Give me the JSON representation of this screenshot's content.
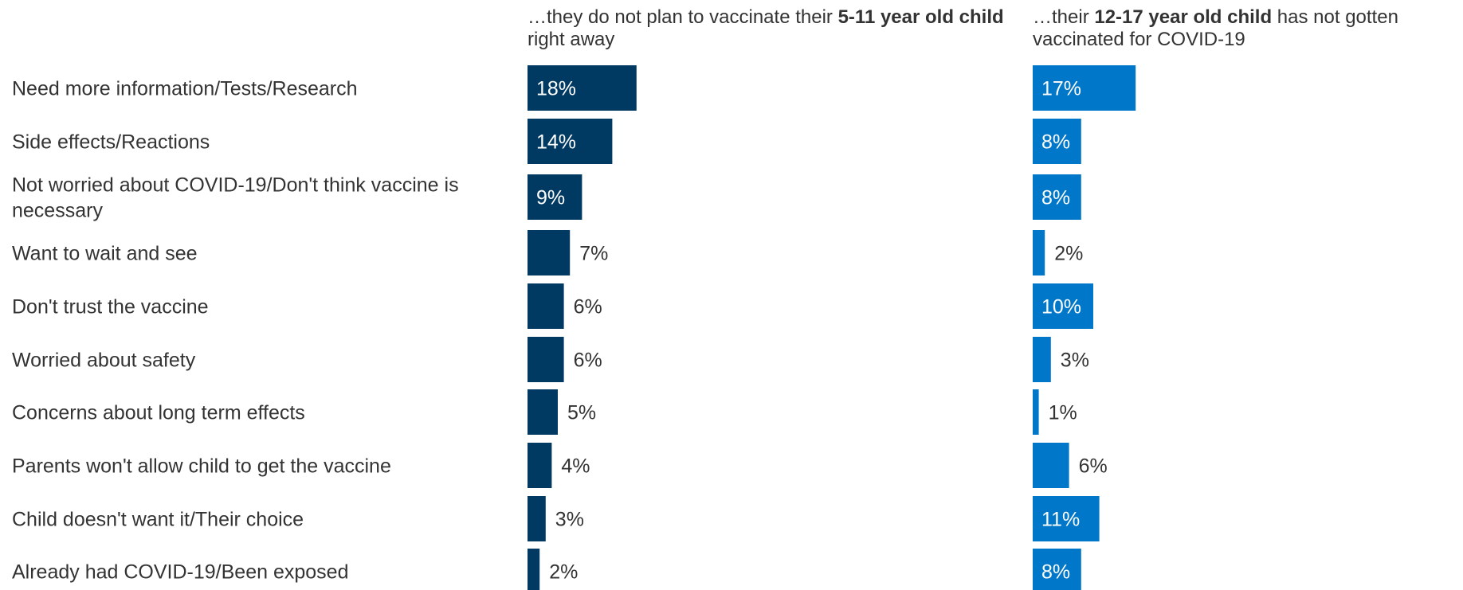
{
  "chart_data": {
    "type": "bar",
    "orientation": "horizontal",
    "categories": [
      "Need more information/Tests/Research",
      "Side effects/Reactions",
      [
        "Not worried about COVID-19/Don't think vaccine is",
        "necessary"
      ],
      "Want to wait and see",
      "Don't trust the vaccine",
      "Worried about safety",
      "Concerns about long term effects",
      "Parents won't allow child to get the vaccine",
      "Child doesn't want it/Their choice",
      "Already had COVID-19/Been exposed"
    ],
    "series": [
      {
        "header_parts": [
          {
            "text": "…they do not plan to vaccinate their ",
            "bold": false
          },
          {
            "text": "5-11 year old child",
            "bold": true
          },
          {
            "text": " right away",
            "bold": false
          }
        ],
        "color": "#003A63",
        "values": [
          18,
          14,
          9,
          7,
          6,
          6,
          5,
          4,
          3,
          2
        ],
        "labels": [
          "18%",
          "14%",
          "9%",
          "7%",
          "6%",
          "6%",
          "5%",
          "4%",
          "3%",
          "2%"
        ]
      },
      {
        "header_parts": [
          {
            "text": "…their ",
            "bold": false
          },
          {
            "text": "12-17 year old child",
            "bold": true
          },
          {
            "text": " has not gotten vaccinated for COVID-19",
            "bold": false
          }
        ],
        "color": "#0077C8",
        "values": [
          17,
          8,
          8,
          2,
          10,
          3,
          1,
          6,
          11,
          8
        ],
        "labels": [
          "17%",
          "8%",
          "8%",
          "2%",
          "10%",
          "3%",
          "1%",
          "6%",
          "11%",
          "8%"
        ]
      }
    ],
    "legend": "none",
    "grid": false
  }
}
